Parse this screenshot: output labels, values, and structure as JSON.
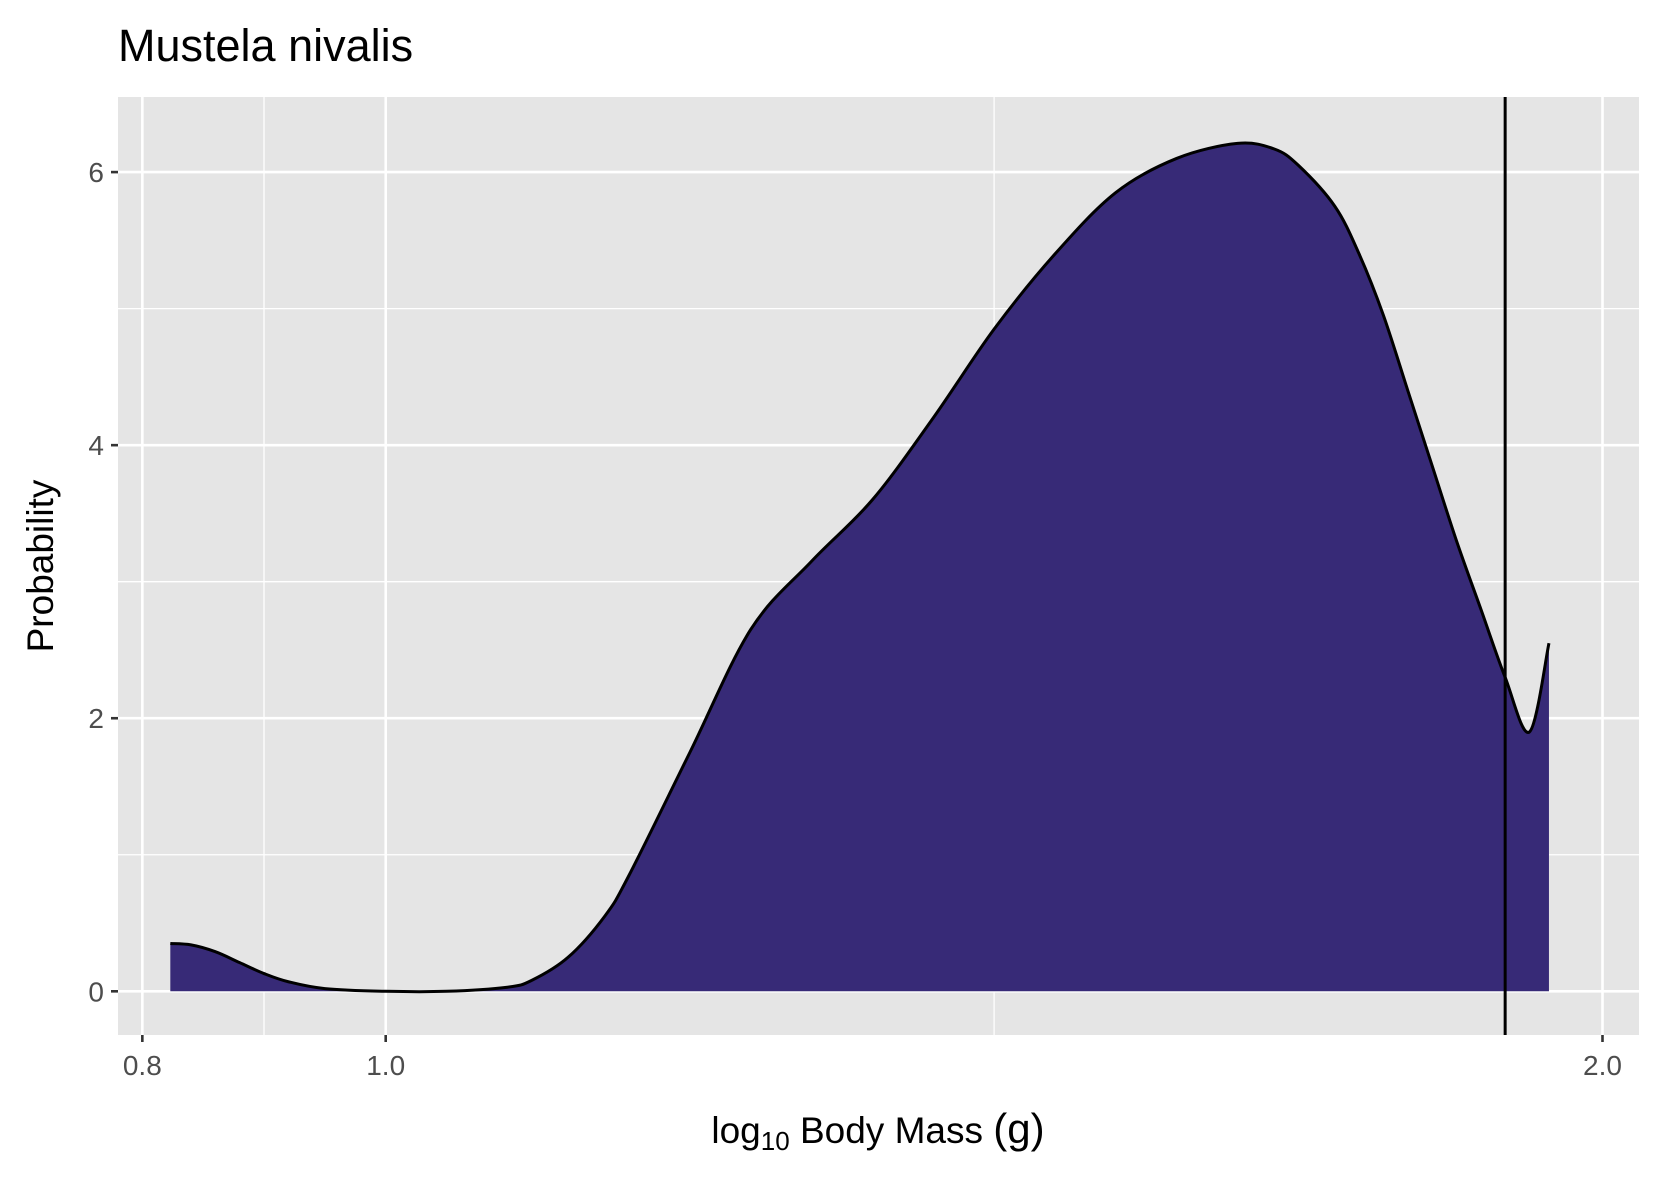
{
  "chart_data": {
    "type": "area",
    "title": "Mustela nivalis",
    "xlabel": {
      "prefix": "log",
      "subscript": "10",
      "suffix": " Body Mass ",
      "unit": "(g)"
    },
    "ylabel": "Probability",
    "x_ticks": [
      {
        "value": 0.8,
        "label": "0.8"
      },
      {
        "value": 1.0,
        "label": "1.0"
      },
      {
        "value": 2.0,
        "label": "2.0"
      }
    ],
    "y_ticks": [
      {
        "value": 0,
        "label": "0"
      },
      {
        "value": 2,
        "label": "2"
      },
      {
        "value": 4,
        "label": "4"
      },
      {
        "value": 6,
        "label": "6"
      }
    ],
    "series": [
      {
        "x": [
          0.823,
          0.84,
          0.86,
          0.88,
          0.9,
          0.92,
          0.95,
          1.0,
          1.05,
          1.1,
          1.12,
          1.15,
          1.18,
          1.2,
          1.25,
          1.3,
          1.35,
          1.4,
          1.45,
          1.5,
          1.55,
          1.6,
          1.65,
          1.7,
          1.73,
          1.75,
          1.78,
          1.8,
          1.82,
          1.84,
          1.86,
          1.88,
          1.9,
          1.92,
          1.94,
          1.956
        ],
        "y": [
          0.35,
          0.34,
          0.29,
          0.21,
          0.13,
          0.07,
          0.02,
          0.0,
          0.0,
          0.03,
          0.08,
          0.25,
          0.55,
          0.85,
          1.75,
          2.65,
          3.15,
          3.6,
          4.2,
          4.85,
          5.4,
          5.85,
          6.1,
          6.21,
          6.17,
          6.05,
          5.75,
          5.4,
          4.95,
          4.4,
          3.85,
          3.3,
          2.8,
          2.3,
          1.9,
          2.55
        ]
      }
    ],
    "vline_x": 1.92,
    "xlim": [
      0.78,
      2.03
    ],
    "ylim": [
      -0.32,
      6.55
    ],
    "grid": true,
    "fill_color": "#372a77",
    "line_color": "#000000",
    "panel_bg": "#e5e5e5",
    "grid_color": "#ffffff"
  }
}
